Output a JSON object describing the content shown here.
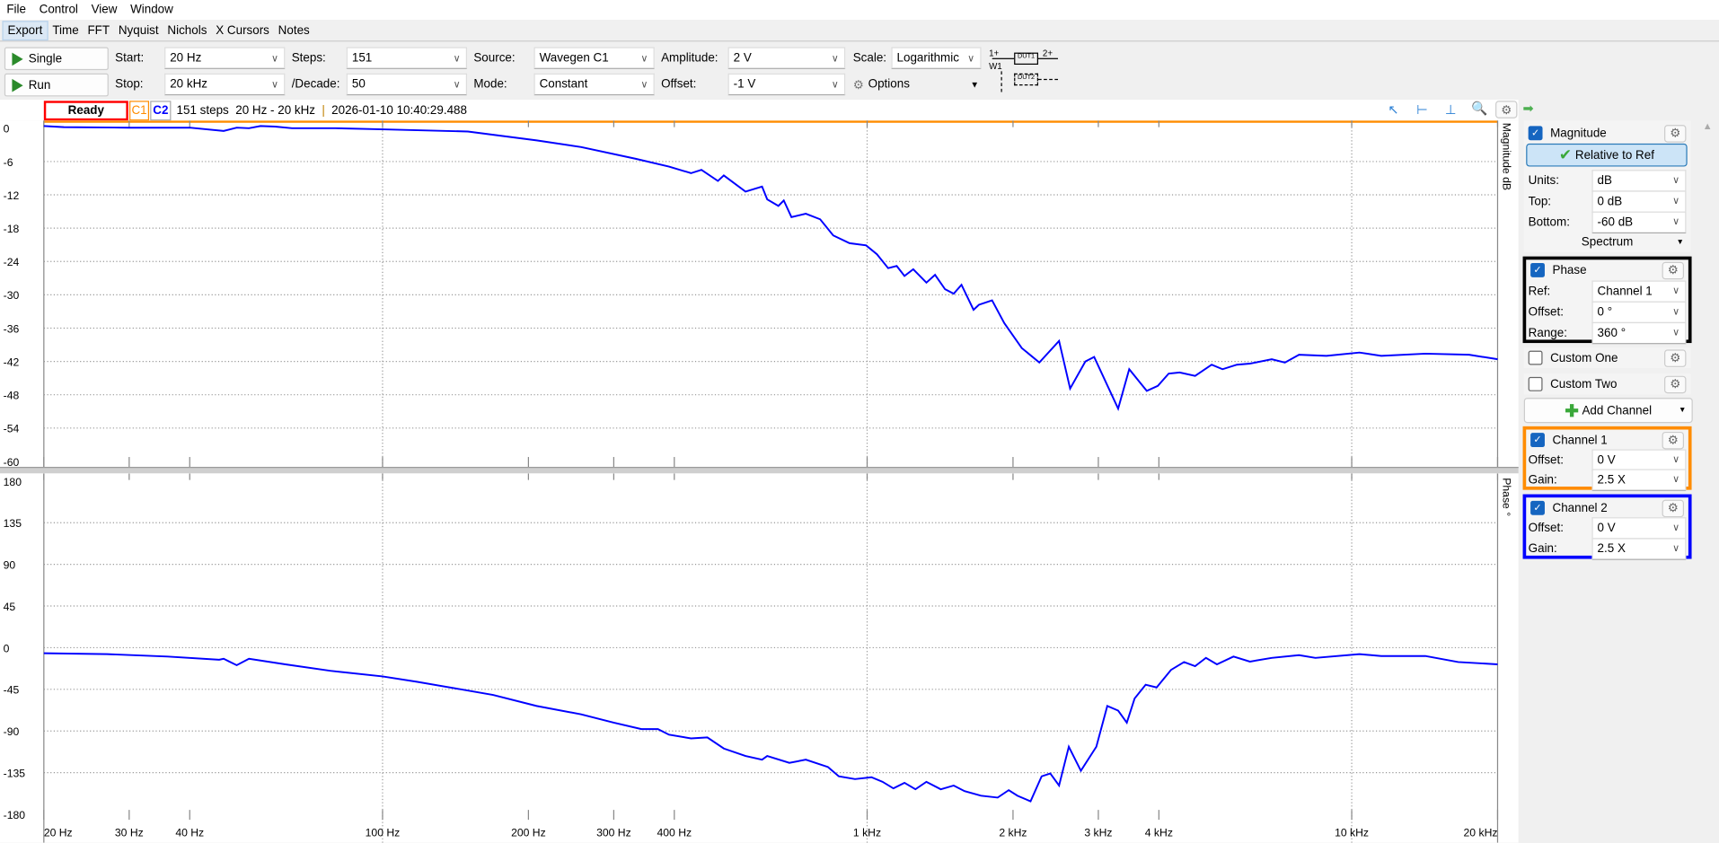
{
  "menu": [
    "File",
    "Control",
    "View",
    "Window"
  ],
  "tabs": [
    "Export",
    "Time",
    "FFT",
    "Nyquist",
    "Nichols",
    "X Cursors",
    "Notes"
  ],
  "toolbar": {
    "single": "Single",
    "run": "Run",
    "start_label": "Start:",
    "start": "20 Hz",
    "stop_label": "Stop:",
    "stop": "20 kHz",
    "steps_label": "Steps:",
    "steps": "151",
    "decade_label": "/Decade:",
    "decade": "50",
    "source_label": "Source:",
    "source": "Wavegen C1",
    "mode_label": "Mode:",
    "mode": "Constant",
    "amp_label": "Amplitude:",
    "amp": "2 V",
    "offset_label": "Offset:",
    "offset": "-1 V",
    "scale_label": "Scale:",
    "scale": "Logarithmic",
    "options": "Options",
    "diagram": {
      "in": "1+",
      "w": "W1",
      "dut1": "DUT1",
      "out": "2+",
      "dut2": "DUT2"
    }
  },
  "status": {
    "state": "Ready",
    "c1": "C1",
    "c2": "C2",
    "info": "151 steps  20 Hz - 20 kHz",
    "sep": "|",
    "time": "2026-01-10 10:40:29.488"
  },
  "colors": {
    "c1": "#ff8c00",
    "c2": "#0000ff",
    "ready_border": "#ff0000",
    "trace": "#0000ff"
  },
  "panel": {
    "magnitude": {
      "title": "Magnitude",
      "checked": true,
      "ref_btn": "Relative to Ref",
      "units_label": "Units:",
      "units": "dB",
      "top_label": "Top:",
      "top": "0 dB",
      "bottom_label": "Bottom:",
      "bottom": "-60 dB",
      "spectrum": "Spectrum"
    },
    "phase": {
      "title": "Phase",
      "checked": true,
      "ref_label": "Ref:",
      "ref": "Channel 1",
      "offset_label": "Offset:",
      "offset": "0 °",
      "range_label": "Range:",
      "range": "360 °"
    },
    "custom_one": {
      "title": "Custom One",
      "checked": false
    },
    "custom_two": {
      "title": "Custom Two",
      "checked": false
    },
    "add_channel": "Add Channel",
    "ch1": {
      "title": "Channel 1",
      "checked": true,
      "offset_label": "Offset:",
      "offset": "0 V",
      "gain_label": "Gain:",
      "gain": "2.5 X"
    },
    "ch2": {
      "title": "Channel 2",
      "checked": true,
      "offset_label": "Offset:",
      "offset": "0 V",
      "gain_label": "Gain:",
      "gain": "2.5 X"
    }
  },
  "chart_data": [
    {
      "type": "line",
      "ylabel": "Magnitude dB",
      "xscale": "log",
      "xlim": [
        20,
        20000
      ],
      "ylim": [
        -60,
        0
      ],
      "yticks": [
        "0",
        "-6",
        "-12",
        "-18",
        "-24",
        "-30",
        "-36",
        "-42",
        "-48",
        "-54",
        "-60"
      ],
      "xticks": [
        [
          20,
          "20 Hz"
        ],
        [
          30,
          "30 Hz"
        ],
        [
          40,
          "40 Hz"
        ],
        [
          100,
          "100 Hz"
        ],
        [
          200,
          "200 Hz"
        ],
        [
          300,
          "300 Hz"
        ],
        [
          400,
          "400 Hz"
        ],
        [
          1000,
          "1 kHz"
        ],
        [
          2000,
          "2 kHz"
        ],
        [
          3000,
          "3 kHz"
        ],
        [
          4000,
          "4 kHz"
        ],
        [
          10000,
          "10 kHz"
        ],
        [
          20000,
          "20 kHz"
        ]
      ],
      "grid": true,
      "series": [
        {
          "x": [
            20,
            22,
            30,
            40,
            47,
            50,
            53,
            56,
            60,
            65,
            80,
            100,
            150,
            208,
            257,
            333,
            390,
            433,
            455,
            492,
            506,
            561,
            607,
            622,
            656,
            673,
            698,
            747,
            800,
            851,
            920,
            995,
            1048,
            1105,
            1151,
            1194,
            1245,
            1325,
            1381,
            1448,
            1509,
            1566,
            1658,
            1701,
            1811,
            1918,
            2085,
            2266,
            2489,
            2623,
            2820,
            2940,
            3296,
            3475,
            3776,
            3981,
            4190,
            4415,
            4751,
            5140,
            5411,
            5794,
            6165,
            6840,
            7279,
            7786,
            8869,
            10374,
            11508,
            14189,
            17467,
            20000
          ],
          "y": [
            0.4,
            0.2,
            0.1,
            0.1,
            -0.5,
            0.1,
            0.0,
            0.4,
            0.3,
            0.0,
            0.0,
            -0.2,
            -0.6,
            -2.2,
            -3.4,
            -5.5,
            -6.9,
            -8.1,
            -7.5,
            -9.5,
            -8.5,
            -11.4,
            -10.5,
            -12.8,
            -14.0,
            -13.0,
            -16.0,
            -15.4,
            -16.4,
            -19.3,
            -20.7,
            -21.1,
            -22.7,
            -25.2,
            -24.8,
            -26.6,
            -25.4,
            -27.8,
            -26.4,
            -29.0,
            -29.8,
            -28.2,
            -32.7,
            -31.8,
            -31.0,
            -35.1,
            -39.6,
            -42.2,
            -38.3,
            -46.9,
            -42.0,
            -41.2,
            -50.5,
            -43.4,
            -47.3,
            -46.4,
            -44.2,
            -44.0,
            -44.6,
            -42.6,
            -43.4,
            -42.6,
            -42.4,
            -41.6,
            -42.2,
            -40.8,
            -41.0,
            -40.4,
            -41.0,
            -40.6,
            -40.8,
            -41.6
          ]
        }
      ]
    },
    {
      "type": "line",
      "ylabel": "Phase °",
      "xscale": "log",
      "xlim": [
        20,
        20000
      ],
      "ylim": [
        -180,
        180
      ],
      "yticks": [
        "180",
        "135",
        "90",
        "45",
        "0",
        "-45",
        "-90",
        "-135",
        "-180"
      ],
      "grid": true,
      "series": [
        {
          "x": [
            20,
            27,
            36,
            46,
            47,
            50,
            53,
            63,
            78,
            100,
            118,
            145,
            169,
            208,
            257,
            300,
            342,
            370,
            390,
            433,
            468,
            506,
            561,
            607,
            622,
            691,
            747,
            830,
            874,
            944,
            1021,
            1076,
            1133,
            1194,
            1258,
            1325,
            1419,
            1509,
            1589,
            1718,
            1859,
            1960,
            2043,
            2174,
            2291,
            2388,
            2489,
            2607,
            2761,
            2971,
            3131,
            3296,
            3435,
            3564,
            3757,
            3957,
            4237,
            4507,
            4751,
            5003,
            5271,
            5702,
            6165,
            6840,
            7786,
            8416,
            10374,
            11508,
            14189,
            16592,
            20000
          ],
          "y": [
            -6,
            -7,
            -9.6,
            -13,
            -12,
            -19,
            -12,
            -18,
            -25,
            -31,
            -37,
            -45,
            -51,
            -63,
            -72,
            -81,
            -88,
            -88,
            -94,
            -98,
            -97,
            -109,
            -117,
            -121,
            -117,
            -124.5,
            -121,
            -129,
            -139,
            -142,
            -140,
            -145,
            -152,
            -146,
            -153,
            -145,
            -153,
            -149,
            -155,
            -160,
            -162,
            -154,
            -160,
            -166,
            -139,
            -136,
            -149,
            -107,
            -133,
            -107,
            -63,
            -68,
            -81,
            -55,
            -40,
            -43,
            -24,
            -15.5,
            -20,
            -11,
            -18,
            -9.6,
            -15,
            -11,
            -8,
            -11,
            -7,
            -9,
            -9,
            -15.5,
            -18
          ]
        }
      ]
    }
  ]
}
